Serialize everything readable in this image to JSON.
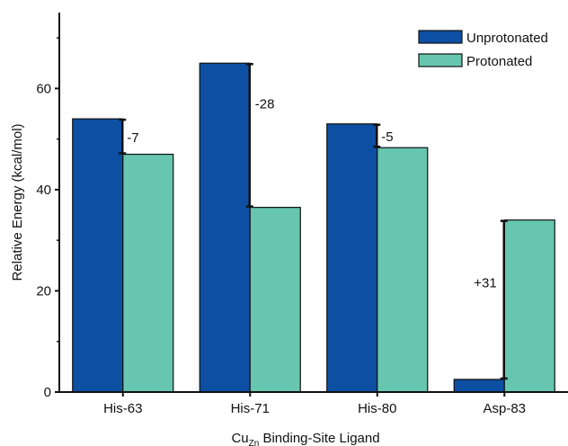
{
  "chart_data": {
    "type": "bar",
    "title": "",
    "xlabel": "Cu",
    "xlabel_sub": "Zn",
    "xlabel_rest": " Binding-Site Ligand",
    "ylabel": "Relative Energy (kcal/mol)",
    "ylim": [
      0,
      75
    ],
    "yticks": [
      0,
      20,
      40,
      60
    ],
    "categories": [
      "His-63",
      "His-71",
      "His-80",
      "Asp-83"
    ],
    "series": [
      {
        "name": "Unprotonated",
        "color": "#0d4fa3",
        "values": [
          54,
          65,
          53,
          2.5
        ]
      },
      {
        "name": "Protonated",
        "color": "#67c6b0",
        "values": [
          47,
          36.5,
          48.3,
          34
        ]
      }
    ],
    "differences": [
      "-7",
      "-28",
      "-5",
      "+31"
    ],
    "legend_position": "top-right",
    "grid": false
  }
}
